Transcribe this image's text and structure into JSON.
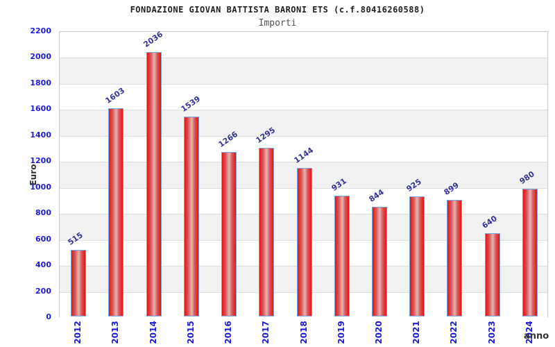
{
  "chart_data": {
    "type": "bar",
    "title": "FONDAZIONE GIOVAN BATTISTA BARONI ETS (c.f.80416260588)",
    "subtitle": "Importi",
    "xlabel": "anno",
    "ylabel": "Euro",
    "categories": [
      "2012",
      "2013",
      "2014",
      "2015",
      "2016",
      "2017",
      "2018",
      "2019",
      "2020",
      "2021",
      "2022",
      "2023",
      "2024"
    ],
    "values": [
      515,
      1603,
      2036,
      1539,
      1266,
      1295,
      1144,
      931,
      844,
      925,
      899,
      640,
      980
    ],
    "ylim": [
      0,
      2200
    ],
    "ytick_step": 200,
    "grid": true,
    "legend": "none",
    "colors": {
      "bar_edge": "#e51414",
      "bar_highlight": "#e6b2b2",
      "bar_border": "#79a7dc",
      "axis_tick_label": "#1c1cd6",
      "value_label": "#333399",
      "band_gray": "#f1f1f1",
      "band_white": "#ffffff",
      "grid_line": "#dedede",
      "plot_border": "#c9c9c9",
      "title_text": "#1f1f1f",
      "axis_title_text": "#333333"
    }
  }
}
